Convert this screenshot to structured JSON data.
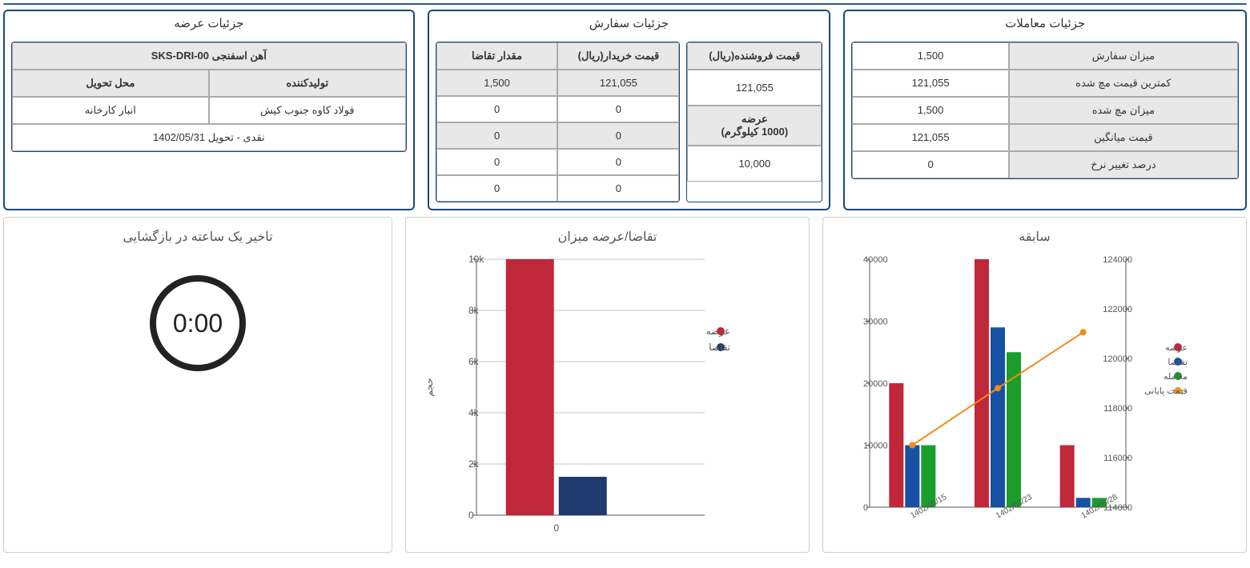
{
  "offer": {
    "title": "جزئیات عرضه",
    "product": "آهن اسفنجی SKS-DRI-00",
    "producer_label": "تولیدکننده",
    "delivery_place_label": "محل تحویل",
    "producer": "فولاد کاوه جنوب کیش",
    "delivery_place": "انبار کارخانه",
    "terms": "نقدی - تحویل 1402/05/31"
  },
  "order": {
    "title": "جزئیات سفارش",
    "seller_price_label": "قیمت فروشنده(ریال)",
    "seller_price": "121,055",
    "volume_label": "عرضه",
    "volume_unit": "(1000 کیلوگرم)",
    "volume": "10,000",
    "buyer_price_label": "قیمت خریدار(ریال)",
    "demand_qty_label": "مقدار تقاضا",
    "rows": [
      {
        "price": "121,055",
        "qty": "1,500"
      },
      {
        "price": "0",
        "qty": "0"
      },
      {
        "price": "0",
        "qty": "0"
      },
      {
        "price": "0",
        "qty": "0"
      },
      {
        "price": "0",
        "qty": "0"
      }
    ]
  },
  "trades": {
    "title": "جزئیات معاملات",
    "rows": [
      {
        "label": "میزان سفارش",
        "value": "1,500"
      },
      {
        "label": "کمترین قیمت مچ شده",
        "value": "121,055"
      },
      {
        "label": "میزان مچ شده",
        "value": "1,500"
      },
      {
        "label": "قیمت میانگین",
        "value": "121,055"
      },
      {
        "label": "درصد تغییر نرخ",
        "value": "0"
      }
    ]
  },
  "timer": {
    "title": "تاخیر یک ساعته در بازگشایی",
    "value": "0:00"
  },
  "supply_demand_chart": {
    "title": "تقاضا/عرضه میزان",
    "type": "bar",
    "axis_y_label": "حجم",
    "category": "0",
    "ylim": [
      0,
      10000
    ],
    "ytick_step": 2000,
    "bars": [
      {
        "label": "عرضه",
        "value": 10000,
        "color": "#c0283a"
      },
      {
        "label": "تقاضا",
        "value": 1500,
        "color": "#1f3a6e"
      }
    ],
    "grid_color": "#888888",
    "tick_labels": [
      "0",
      "2k",
      "4k",
      "6k",
      "8k",
      "10k"
    ]
  },
  "history_chart": {
    "title": "سابقه",
    "type": "bar+line",
    "categories": [
      "1402/05/15",
      "1402/05/23",
      "1402/05/28"
    ],
    "series": [
      {
        "name": "عرضه",
        "color": "#c0283a",
        "values": [
          20000,
          40000,
          10000
        ]
      },
      {
        "name": "تقاضا",
        "color": "#1651a3",
        "values": [
          10000,
          29000,
          1500
        ]
      },
      {
        "name": "معامله",
        "color": "#1a9e2b",
        "values": [
          10000,
          25000,
          1500
        ]
      }
    ],
    "line_series": {
      "name": "قیمت پایانی",
      "color": "#f08a1a",
      "values": [
        116500,
        118800,
        121055
      ]
    },
    "y_left": {
      "min": 0,
      "max": 40000,
      "step": 10000
    },
    "y_right": {
      "min": 114000,
      "max": 124000,
      "step": 2000
    },
    "grid_color": "#888888"
  }
}
